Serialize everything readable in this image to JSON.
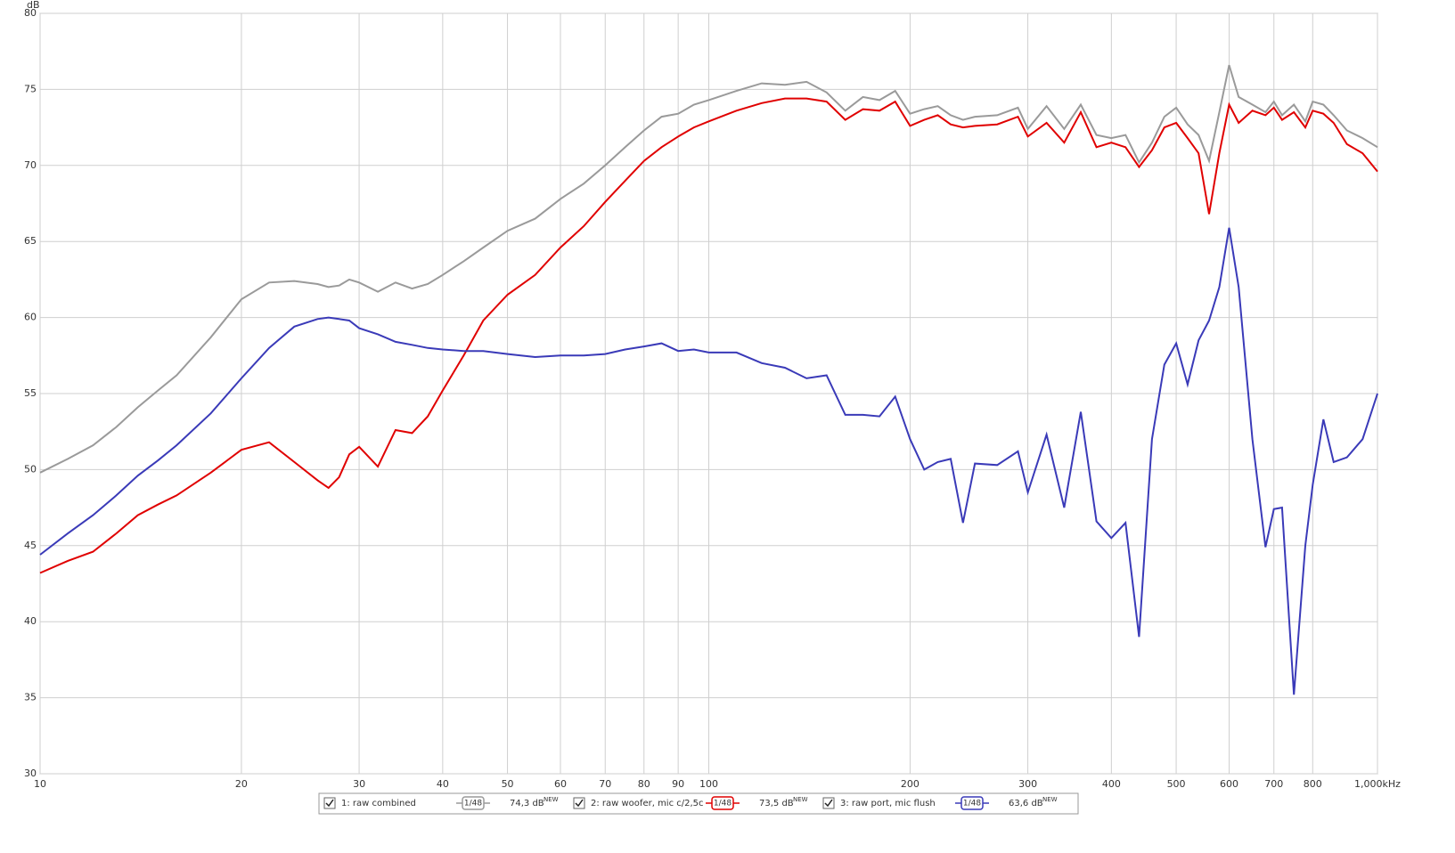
{
  "chart_data": {
    "type": "line",
    "y_label": "dB",
    "xscale": "log",
    "grid": true,
    "x": [
      10,
      11,
      12,
      13,
      14,
      15,
      16,
      18,
      20,
      22,
      24,
      26,
      27,
      28,
      29,
      30,
      32,
      34,
      36,
      38,
      40,
      43,
      46,
      50,
      55,
      60,
      65,
      70,
      75,
      80,
      85,
      90,
      95,
      100,
      110,
      120,
      130,
      140,
      150,
      160,
      170,
      180,
      190,
      200,
      210,
      220,
      230,
      240,
      250,
      270,
      290,
      300,
      320,
      340,
      360,
      380,
      400,
      420,
      440,
      460,
      480,
      500,
      520,
      540,
      560,
      580,
      600,
      620,
      650,
      680,
      700,
      720,
      750,
      780,
      800,
      830,
      860,
      900,
      950,
      1000
    ],
    "series": [
      {
        "name": "1: raw combined",
        "smoothing": "1/48",
        "level": "74,3 dB",
        "level_tag": "NEW",
        "color": "#9a9a9a",
        "values": [
          49.8,
          50.7,
          51.6,
          52.8,
          54.1,
          55.2,
          56.2,
          58.7,
          61.2,
          62.3,
          62.4,
          62.2,
          62.0,
          62.1,
          62.5,
          62.3,
          61.7,
          62.3,
          61.9,
          62.2,
          62.8,
          63.7,
          64.6,
          65.7,
          66.5,
          67.8,
          68.8,
          70.0,
          71.2,
          72.3,
          73.2,
          73.4,
          74.0,
          74.3,
          74.9,
          75.4,
          75.3,
          75.5,
          74.8,
          73.6,
          74.5,
          74.3,
          74.9,
          73.4,
          73.7,
          73.9,
          73.3,
          73.0,
          73.2,
          73.3,
          73.8,
          72.4,
          73.9,
          72.4,
          74.0,
          72.0,
          71.8,
          72.0,
          70.2,
          71.5,
          73.2,
          73.8,
          72.7,
          72.0,
          70.3,
          73.5,
          76.6,
          74.5,
          74.0,
          73.5,
          74.2,
          73.3,
          74.0,
          72.9,
          74.2,
          74.0,
          73.3,
          72.3,
          71.8,
          71.2
        ]
      },
      {
        "name": "2: raw woofer, mic c/2,5c",
        "smoothing": "1/48",
        "level": "73,5 dB",
        "level_tag": "NEW",
        "color": "#e00000",
        "values": [
          43.2,
          44.0,
          44.6,
          45.8,
          47.0,
          47.7,
          48.3,
          49.8,
          51.3,
          51.8,
          50.5,
          49.3,
          48.8,
          49.5,
          51.0,
          51.5,
          50.2,
          52.6,
          52.4,
          53.5,
          55.2,
          57.5,
          59.8,
          61.5,
          62.8,
          64.6,
          66.0,
          67.6,
          69.0,
          70.3,
          71.2,
          71.9,
          72.5,
          72.9,
          73.6,
          74.1,
          74.4,
          74.4,
          74.2,
          73.0,
          73.7,
          73.6,
          74.2,
          72.6,
          73.0,
          73.3,
          72.7,
          72.5,
          72.6,
          72.7,
          73.2,
          71.9,
          72.8,
          71.5,
          73.5,
          71.2,
          71.5,
          71.2,
          69.9,
          71.0,
          72.5,
          72.8,
          71.8,
          70.8,
          66.8,
          70.8,
          74.0,
          72.8,
          73.6,
          73.3,
          73.8,
          73.0,
          73.5,
          72.5,
          73.6,
          73.4,
          72.8,
          71.4,
          70.8,
          69.6
        ]
      },
      {
        "name": "3: raw port, mic flush",
        "smoothing": "1/48",
        "level": "63,6 dB",
        "level_tag": "NEW",
        "color": "#3a3ab8",
        "values": [
          44.4,
          45.8,
          47.0,
          48.3,
          49.6,
          50.6,
          51.6,
          53.7,
          56.0,
          58.0,
          59.4,
          59.9,
          60.0,
          59.9,
          59.8,
          59.3,
          58.9,
          58.4,
          58.2,
          58.0,
          57.9,
          57.8,
          57.8,
          57.6,
          57.4,
          57.5,
          57.5,
          57.6,
          57.9,
          58.1,
          58.3,
          57.8,
          57.9,
          57.7,
          57.7,
          57.0,
          56.7,
          56.0,
          56.2,
          53.6,
          53.6,
          53.5,
          54.8,
          52.0,
          50.0,
          50.5,
          50.7,
          46.5,
          50.4,
          50.3,
          51.2,
          48.5,
          52.3,
          47.5,
          53.8,
          46.6,
          45.5,
          46.5,
          39.0,
          52.0,
          56.9,
          58.3,
          55.6,
          58.5,
          59.8,
          62.0,
          65.9,
          62.0,
          52.0,
          44.9,
          47.4,
          47.5,
          35.2,
          45.0,
          49.0,
          53.3,
          50.5,
          50.8,
          52.0,
          55.0
        ]
      }
    ],
    "xlim": [
      10,
      1000
    ],
    "ylim": [
      30,
      80
    ],
    "xticks": [
      10,
      20,
      30,
      40,
      50,
      60,
      70,
      80,
      90,
      100,
      200,
      300,
      400,
      500,
      600,
      700,
      800,
      {
        "value": 1000,
        "label": "1,000kHz"
      }
    ],
    "yticks": [
      30,
      35,
      40,
      45,
      50,
      55,
      60,
      65,
      70,
      75,
      80
    ]
  }
}
